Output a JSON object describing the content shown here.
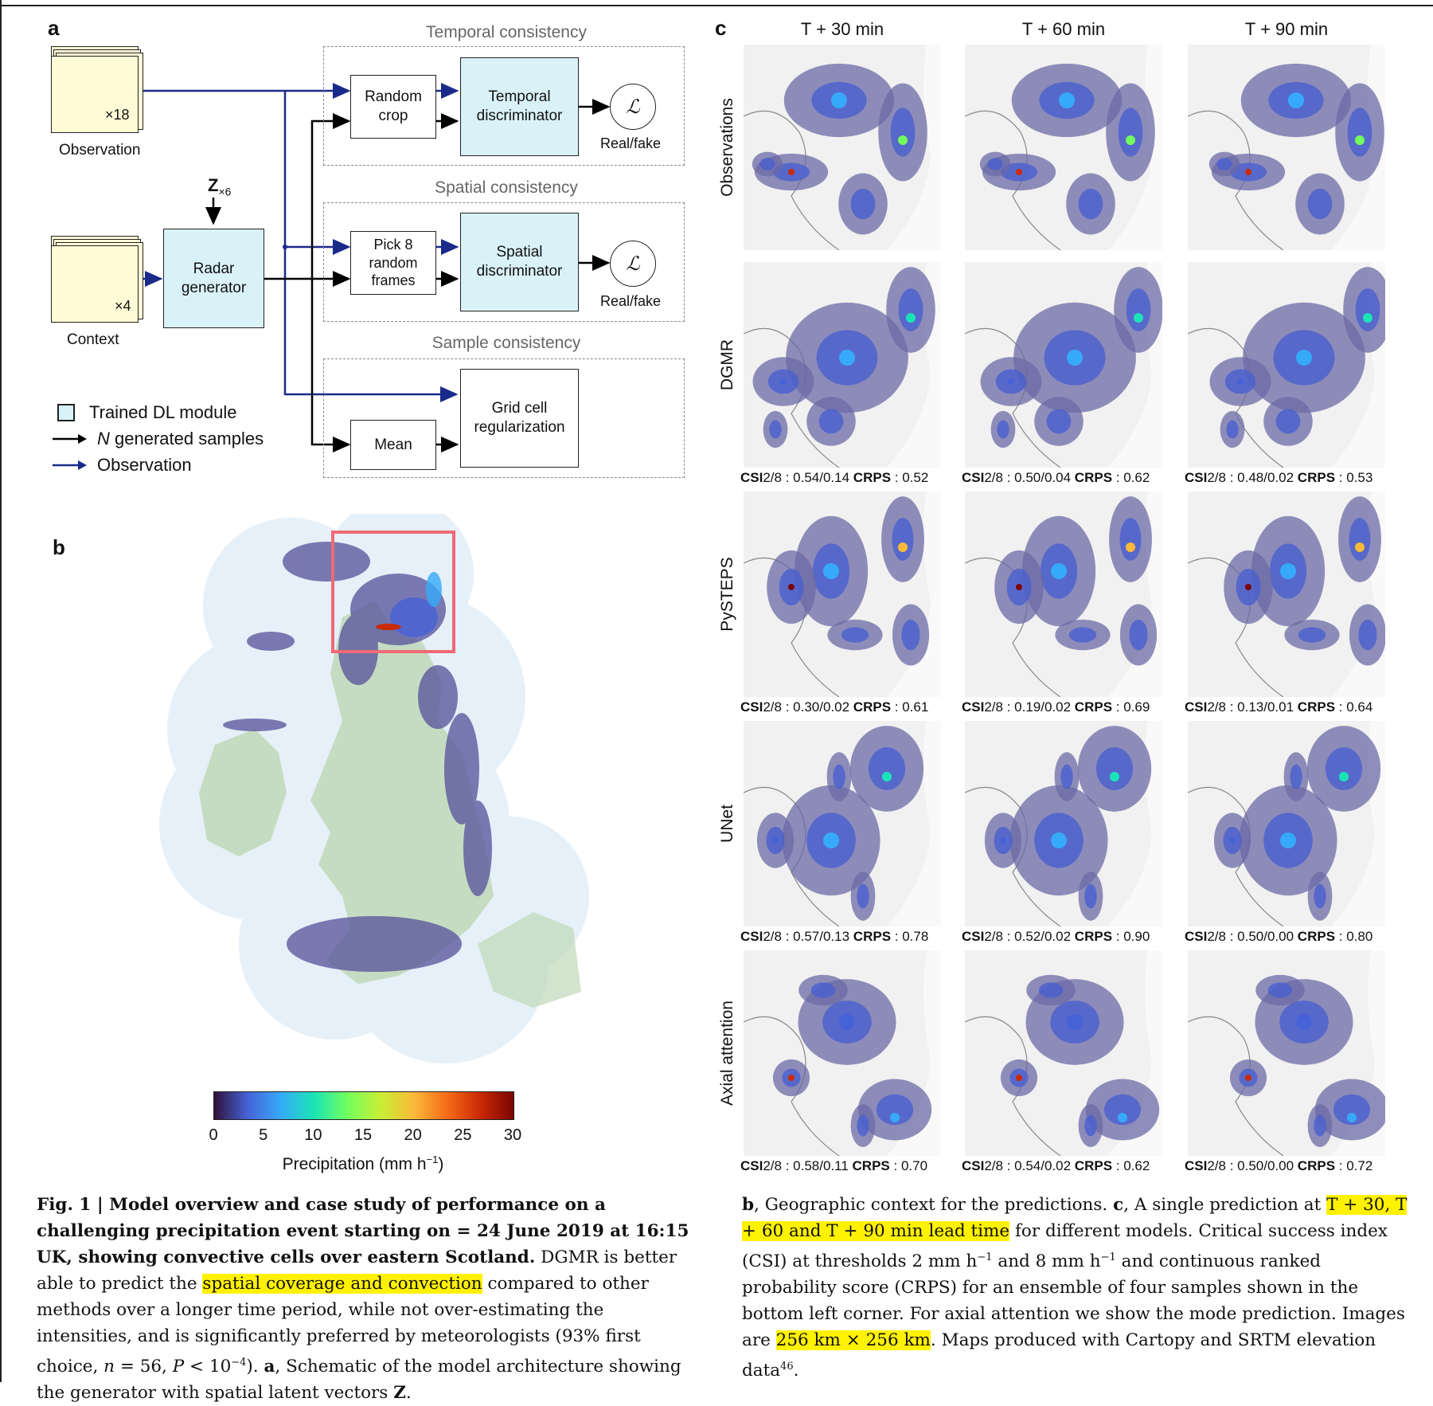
{
  "panel_a": {
    "letter": "a",
    "observation": {
      "stack_label": "×18",
      "label": "Observation"
    },
    "context": {
      "stack_label": "×4",
      "label": "Context"
    },
    "z_label": "Z",
    "z_sub": "×6",
    "generator": "Radar\ngenerator",
    "groups": {
      "temporal": {
        "title": "Temporal consistency",
        "crop": "Random\ncrop",
        "disc": "Temporal\ndiscriminator",
        "out": "Real/fake"
      },
      "spatial": {
        "title": "Spatial consistency",
        "crop": "Pick 8\nrandom\nframes",
        "disc": "Spatial\ndiscriminator",
        "out": "Real/fake"
      },
      "sample": {
        "title": "Sample consistency",
        "mean": "Mean",
        "reg": "Grid cell\nregularization"
      }
    },
    "loss_symbol": "ℒ",
    "legend": {
      "trained": "Trained DL module",
      "generated_prefix": "N",
      "generated": " generated samples",
      "observation": "Observation"
    },
    "colors": {
      "dl_fill": "#d9f2f8",
      "observation_arrow": "#1a2a8a",
      "generated_arrow": "#000000",
      "stack_fill": "#fffbd6"
    }
  },
  "panel_b": {
    "letter": "b",
    "colorbar": {
      "ticks": [
        "0",
        "5",
        "10",
        "15",
        "20",
        "25",
        "30"
      ],
      "label": "Precipitation (mm h",
      "label_sup": "−1",
      "label_end": ")",
      "colors": [
        "#30123b",
        "#4662d7",
        "#36aaf9",
        "#1ae4b6",
        "#72fe5e",
        "#c8ef34",
        "#faba39",
        "#f66b19",
        "#ca2a04",
        "#7a0403"
      ]
    },
    "highlight_color": "#f06a75"
  },
  "panel_c": {
    "letter": "c",
    "columns": [
      "T + 30 min",
      "T + 60 min",
      "T + 90 min"
    ],
    "rows": [
      {
        "label": "Observations",
        "metrics": []
      },
      {
        "label": "DGMR",
        "metrics": [
          {
            "csi": "0.54/0.14",
            "crps": "0.52"
          },
          {
            "csi": "0.50/0.04",
            "crps": "0.62"
          },
          {
            "csi": "0.48/0.02",
            "crps": "0.53"
          }
        ]
      },
      {
        "label": "PySTEPS",
        "metrics": [
          {
            "csi": "0.30/0.02",
            "crps": "0.61"
          },
          {
            "csi": "0.19/0.02",
            "crps": "0.69"
          },
          {
            "csi": "0.13/0.01",
            "crps": "0.64"
          }
        ]
      },
      {
        "label": "UNet",
        "metrics": [
          {
            "csi": "0.57/0.13",
            "crps": "0.78"
          },
          {
            "csi": "0.52/0.02",
            "crps": "0.90"
          },
          {
            "csi": "0.50/0.00",
            "crps": "0.80"
          }
        ]
      },
      {
        "label": "Axial attention",
        "metrics": [
          {
            "csi": "0.58/0.11",
            "crps": "0.70"
          },
          {
            "csi": "0.54/0.02",
            "crps": "0.62"
          },
          {
            "csi": "0.50/0.00",
            "crps": "0.72"
          }
        ]
      }
    ],
    "csi_label": "CSI",
    "csi_thresholds": "2/8",
    "crps_label": "CRPS"
  },
  "caption_left": {
    "bold": "Fig. 1 | Model overview and case study of performance on a challenging precipitation event starting on = 24 June 2019 at 16:15 UK, showing convective cells over eastern Scotland.",
    "t1": " DGMR is better able to predict the ",
    "hl1": "spatial coverage and convection",
    "t2": " compared to other methods over a longer time period, while not over-estimating the intensities, and is significantly preferred by meteorologists (93% first choice, ",
    "n": "n",
    "t3": " = 56, ",
    "p": "P",
    "t4": " < 10",
    "sup": "−4",
    "t5": "). ",
    "a": "a",
    "t6": ", Schematic of the model architecture showing the generator with spatial latent vectors ",
    "z": "Z",
    "t7": "."
  },
  "caption_right": {
    "b": "b",
    "t1": ", Geographic context for the predictions. ",
    "c": "c",
    "t2": ", A single prediction at ",
    "hl1": "T + 30, T + 60 and T + 90 min lead time",
    "t3": " for different models. Critical success index (CSI) at thresholds 2 mm h",
    "sup1": "−1",
    "t4": " and 8 mm h",
    "sup2": "−1",
    "t5": " and continuous ranked probability score (CRPS) for an ensemble of four samples shown in the bottom left corner. For axial attention we show the mode prediction. Images are ",
    "hl2": "256 km × 256 km",
    "t6": ". Maps produced with Cartopy and SRTM elevation data",
    "sup3": "46",
    "t7": "."
  }
}
